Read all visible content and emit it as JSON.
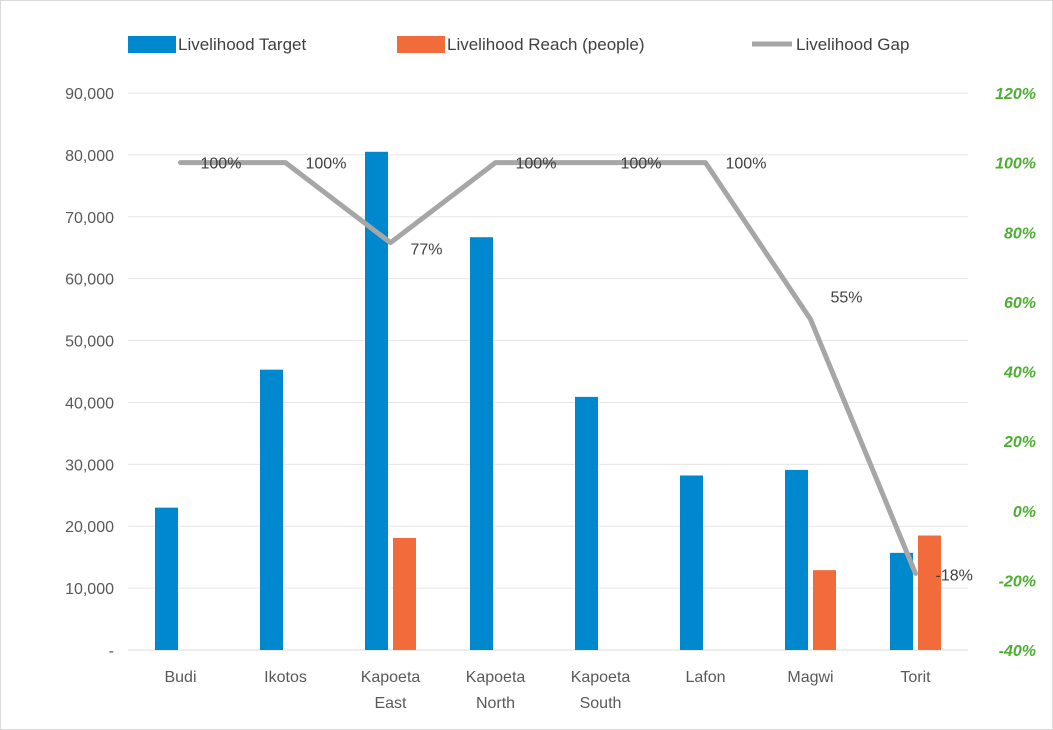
{
  "chart_data": {
    "type": "bar",
    "categories": [
      [
        "Budi"
      ],
      [
        "Ikotos"
      ],
      [
        "Kapoeta",
        "East"
      ],
      [
        "Kapoeta",
        "North"
      ],
      [
        "Kapoeta",
        "South"
      ],
      [
        "Lafon"
      ],
      [
        "Magwi"
      ],
      [
        "Torit"
      ]
    ],
    "series": [
      {
        "name": "Livelihood Target",
        "type": "bar",
        "axis": "left",
        "color": "#0088CE",
        "values": [
          23000,
          45300,
          80500,
          66700,
          40900,
          28200,
          29100,
          15700
        ]
      },
      {
        "name": "Livelihood Reach (people)",
        "type": "bar",
        "axis": "left",
        "color": "#F26B3A",
        "values": [
          0,
          0,
          18100,
          0,
          0,
          0,
          12900,
          18500
        ]
      },
      {
        "name": "Livelihood Gap",
        "type": "line",
        "axis": "right",
        "color": "#A6A6A6",
        "values": [
          1.0,
          1.0,
          0.77,
          1.0,
          1.0,
          1.0,
          0.55,
          -0.18
        ],
        "labels": [
          "100%",
          "100%",
          "77%",
          "100%",
          "100%",
          "100%",
          "55%",
          "-18%"
        ]
      }
    ],
    "y_left": {
      "ylim": [
        0,
        90000
      ],
      "ticks": [
        0,
        10000,
        20000,
        30000,
        40000,
        50000,
        60000,
        70000,
        80000,
        90000
      ],
      "tick_labels": [
        "-",
        "10,000",
        "20,000",
        "30,000",
        "40,000",
        "50,000",
        "60,000",
        "70,000",
        "80,000",
        "90,000"
      ]
    },
    "y_right": {
      "ylim": [
        -0.4,
        1.2
      ],
      "ticks": [
        -0.4,
        -0.2,
        0,
        0.2,
        0.4,
        0.6,
        0.8,
        1.0,
        1.2
      ],
      "tick_labels": [
        "-40%",
        "-20%",
        "0%",
        "20%",
        "40%",
        "60%",
        "80%",
        "100%",
        "120%"
      ],
      "color": "#4CAF2F"
    },
    "legend": {
      "position": "top"
    },
    "grid": true
  }
}
